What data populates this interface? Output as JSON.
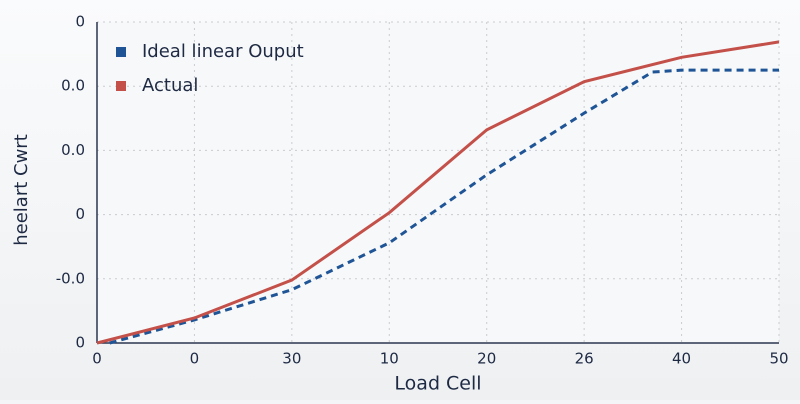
{
  "chart_data": {
    "type": "line",
    "x_label": "Load Cell",
    "y_label": "heelart Cwrt",
    "xlim": [
      0,
      7
    ],
    "ylim": [
      0,
      5
    ],
    "xticks": [
      0,
      {
        "value": 1,
        "label": "0"
      },
      {
        "value": 2,
        "label": "30"
      },
      {
        "value": 3,
        "label": "10"
      },
      {
        "value": 4,
        "label": "20"
      },
      {
        "value": 5,
        "label": "26"
      },
      {
        "value": 6,
        "label": "40"
      },
      {
        "value": 7,
        "label": "50"
      }
    ],
    "yticks": [
      0,
      {
        "value": 1,
        "label": "-0.0"
      },
      {
        "value": 2,
        "label": "0"
      },
      {
        "value": 3,
        "label": "0.0"
      },
      {
        "value": 4,
        "label": "0.0"
      },
      {
        "value": 5,
        "label": "0"
      }
    ],
    "grid": true,
    "legend": "upper left",
    "series": [
      {
        "name": "Ideal linear Ouput",
        "color": "#1f5596",
        "dashed": true,
        "x": [
          0.13,
          1,
          2,
          3,
          4,
          5,
          5.7,
          6,
          7
        ],
        "values": [
          0,
          0.36,
          0.83,
          1.56,
          2.62,
          3.58,
          4.22,
          4.25,
          4.25
        ]
      },
      {
        "name": "Actual",
        "color": "#c4504a",
        "dashed": false,
        "x": [
          0,
          1,
          2,
          3,
          4,
          5,
          6,
          7
        ],
        "values": [
          0,
          0.39,
          0.98,
          2.03,
          3.32,
          4.07,
          4.45,
          4.69
        ]
      }
    ]
  }
}
